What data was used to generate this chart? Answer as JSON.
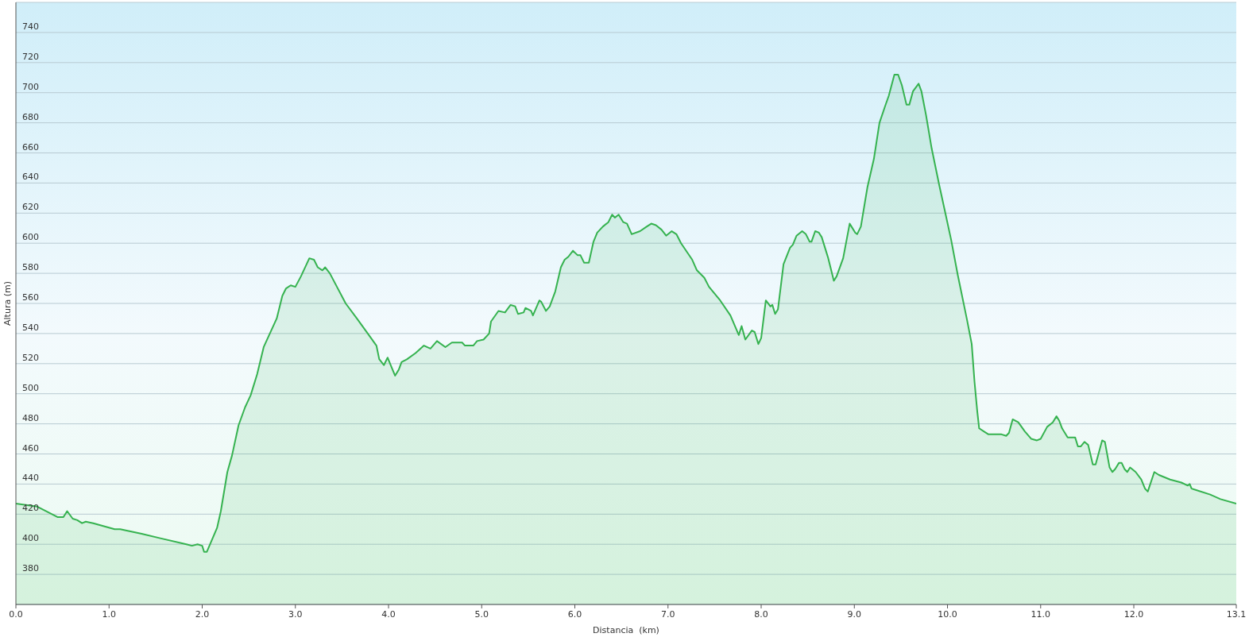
{
  "chart_data": {
    "type": "area",
    "xlabel": "Distancia  (km)",
    "ylabel": "Altura (m)",
    "x": [
      0,
      0.23,
      0.45,
      0.51,
      0.55,
      0.61,
      0.66,
      0.71,
      0.75,
      0.83,
      1.06,
      1.12,
      1.35,
      1.55,
      1.83,
      1.89,
      1.95,
      2.0,
      2.02,
      2.05,
      2.16,
      2.2,
      2.27,
      2.32,
      2.39,
      2.46,
      2.52,
      2.59,
      2.66,
      2.8,
      2.86,
      2.9,
      2.95,
      3.0,
      3.06,
      3.15,
      3.2,
      3.24,
      3.29,
      3.32,
      3.37,
      3.54,
      3.66,
      3.8,
      3.87,
      3.9,
      3.95,
      3.99,
      4.03,
      4.07,
      4.11,
      4.14,
      4.2,
      4.29,
      4.38,
      4.45,
      4.52,
      4.61,
      4.68,
      4.79,
      4.82,
      4.91,
      4.95,
      5.02,
      5.08,
      5.1,
      5.18,
      5.25,
      5.31,
      5.36,
      5.39,
      5.45,
      5.47,
      5.53,
      5.55,
      5.62,
      5.64,
      5.69,
      5.73,
      5.79,
      5.85,
      5.89,
      5.93,
      5.98,
      6.03,
      6.06,
      6.1,
      6.15,
      6.2,
      6.24,
      6.3,
      6.36,
      6.4,
      6.43,
      6.47,
      6.52,
      6.56,
      6.61,
      6.7,
      6.77,
      6.82,
      6.87,
      6.93,
      6.98,
      7.04,
      7.09,
      7.14,
      7.26,
      7.31,
      7.39,
      7.44,
      7.56,
      7.67,
      7.76,
      7.79,
      7.83,
      7.9,
      7.93,
      7.97,
      8.0,
      8.05,
      8.1,
      8.12,
      8.15,
      8.18,
      8.24,
      8.31,
      8.34,
      8.38,
      8.44,
      8.48,
      8.52,
      8.54,
      8.58,
      8.62,
      8.65,
      8.72,
      8.78,
      8.81,
      8.88,
      8.95,
      8.97,
      9.01,
      9.03,
      9.07,
      9.14,
      9.21,
      9.27,
      9.33,
      9.37,
      9.43,
      9.47,
      9.51,
      9.56,
      9.59,
      9.63,
      9.69,
      9.72,
      9.77,
      9.83,
      9.91,
      9.97,
      10.04,
      10.11,
      10.17,
      10.21,
      10.26,
      10.29,
      10.32,
      10.34,
      10.39,
      10.44,
      10.5,
      10.58,
      10.63,
      10.66,
      10.7,
      10.76,
      10.83,
      10.9,
      10.96,
      11.0,
      11.07,
      11.13,
      11.17,
      11.2,
      11.23,
      11.29,
      11.37,
      11.4,
      11.43,
      11.47,
      11.51,
      11.56,
      11.59,
      11.66,
      11.69,
      11.74,
      11.77,
      11.8,
      11.84,
      11.87,
      11.9,
      11.93,
      11.96,
      12.02,
      12.08,
      12.12,
      12.15,
      12.22,
      12.27,
      12.39,
      12.51,
      12.58,
      12.6,
      12.62,
      12.67,
      12.82,
      12.93,
      13.1
    ],
    "values": [
      427,
      425,
      418,
      418,
      422,
      417,
      416,
      414,
      415,
      414,
      410,
      410,
      407,
      404,
      400,
      399,
      400,
      399,
      395,
      395,
      411,
      422,
      448,
      459,
      479,
      491,
      499,
      513,
      531,
      550,
      565,
      570,
      572,
      571,
      578,
      590,
      589,
      584,
      582,
      584,
      580,
      560,
      550,
      538,
      532,
      523,
      519,
      524,
      518,
      512,
      516,
      521,
      523,
      527,
      532,
      530,
      535,
      531,
      534,
      534,
      532,
      532,
      535,
      536,
      540,
      548,
      555,
      554,
      559,
      558,
      553,
      554,
      557,
      555,
      552,
      562,
      561,
      555,
      558,
      568,
      584,
      589,
      591,
      595,
      592,
      592,
      587,
      587,
      601,
      607,
      611,
      614,
      619,
      617,
      619,
      614,
      613,
      606,
      608,
      611,
      613,
      612,
      609,
      605,
      608,
      606,
      600,
      589,
      582,
      577,
      571,
      562,
      552,
      539,
      545,
      536,
      542,
      541,
      533,
      537,
      562,
      558,
      559,
      553,
      556,
      586,
      597,
      599,
      605,
      608,
      606,
      601,
      601,
      608,
      607,
      604,
      590,
      575,
      578,
      590,
      613,
      611,
      607,
      606,
      611,
      637,
      656,
      680,
      691,
      698,
      712,
      712,
      705,
      692,
      692,
      701,
      706,
      701,
      685,
      663,
      639,
      622,
      602,
      579,
      561,
      549,
      533,
      508,
      488,
      477,
      475,
      473,
      473,
      473,
      472,
      474,
      483,
      481,
      475,
      470,
      469,
      470,
      478,
      481,
      485,
      482,
      477,
      471,
      471,
      465,
      465,
      468,
      466,
      453,
      453,
      469,
      468,
      451,
      448,
      450,
      454,
      454,
      450,
      448,
      451,
      448,
      443,
      437,
      435,
      448,
      446,
      443,
      441,
      439,
      440,
      437,
      436,
      433,
      430,
      427
    ],
    "color": "#35b24f",
    "xlim": [
      0,
      13.1
    ],
    "xticks": [
      {
        "value": 0,
        "label": "0.0"
      },
      {
        "value": 1,
        "label": "1.0"
      },
      {
        "value": 2,
        "label": "2.0"
      },
      {
        "value": 3,
        "label": "3.0"
      },
      {
        "value": 4,
        "label": "4.0"
      },
      {
        "value": 5,
        "label": "5.0"
      },
      {
        "value": 6,
        "label": "6.0"
      },
      {
        "value": 7,
        "label": "7.0"
      },
      {
        "value": 8,
        "label": "8.0"
      },
      {
        "value": 9,
        "label": "9.0"
      },
      {
        "value": 10,
        "label": "10.0"
      },
      {
        "value": 11,
        "label": "11.0"
      },
      {
        "value": 12,
        "label": "12.0"
      },
      13.1
    ],
    "ylim": [
      360,
      760
    ],
    "yticks": [
      380,
      400,
      420,
      440,
      460,
      480,
      500,
      520,
      540,
      560,
      580,
      600,
      620,
      640,
      660,
      680,
      700,
      720,
      740
    ],
    "grid": "y"
  }
}
